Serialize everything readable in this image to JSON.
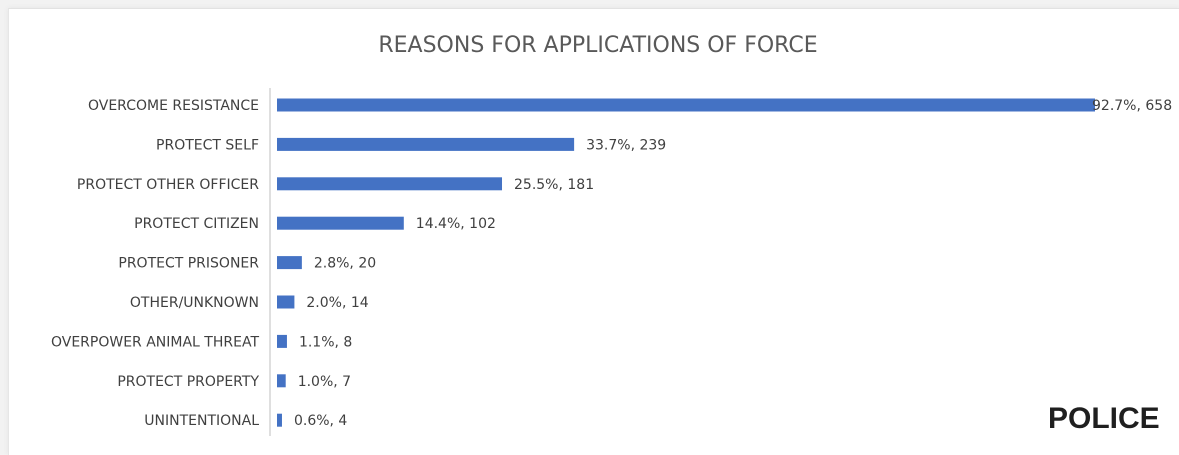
{
  "brand": {
    "label": "POLICE"
  },
  "chart_data": {
    "type": "bar",
    "orientation": "horizontal",
    "title": "REASONS FOR APPLICATIONS OF FORCE",
    "xlabel": "",
    "ylabel": "",
    "categories": [
      "OVERCOME RESISTANCE",
      "PROTECT SELF",
      "PROTECT OTHER OFFICER",
      "PROTECT CITIZEN",
      "PROTECT PRISONER",
      "OTHER/UNKNOWN",
      "OVERPOWER ANIMAL THREAT",
      "PROTECT PROPERTY",
      "UNINTENTIONAL"
    ],
    "values": [
      658,
      239,
      181,
      102,
      20,
      14,
      8,
      7,
      4
    ],
    "data_labels": [
      "92.7%, 658",
      "33.7%, 239",
      "25.5%, 181",
      "14.4%, 102",
      "2.8%, 20",
      "2.0%, 14",
      "1.1%, 8",
      "1.0%, 7",
      "0.6%, 4"
    ],
    "bar_color": "#4472c4",
    "grid": false,
    "legend": "none",
    "xlim": [
      0,
      658
    ]
  }
}
